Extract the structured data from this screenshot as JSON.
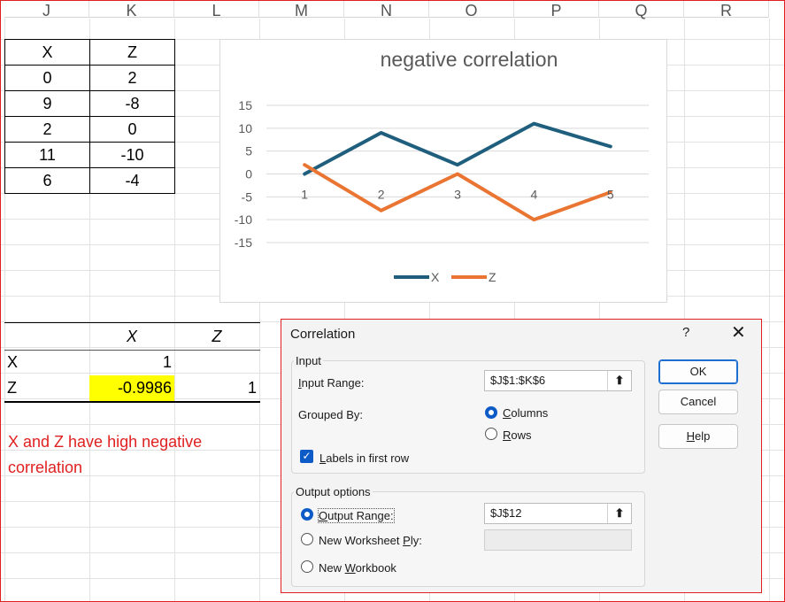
{
  "columns": [
    "J",
    "K",
    "L",
    "M",
    "N",
    "O",
    "P",
    "Q",
    "R"
  ],
  "data_table": {
    "header": [
      "X",
      "Z"
    ],
    "rows": [
      [
        "0",
        "2"
      ],
      [
        "9",
        "-8"
      ],
      [
        "2",
        "0"
      ],
      [
        "11",
        "-10"
      ],
      [
        "6",
        "-4"
      ]
    ]
  },
  "corr_table": {
    "col_headers": [
      "X",
      "Z"
    ],
    "row_x": {
      "label": "X",
      "v1": "1"
    },
    "row_z": {
      "label": "Z",
      "v1": "-0.9986",
      "v2": "1"
    }
  },
  "note": {
    "line1": "X and Z have high negative",
    "line2": "correlation"
  },
  "colors": {
    "x_series": "#1f5f7d",
    "z_series": "#ea7533",
    "highlight": "#ffff00",
    "note_text": "#e02020"
  },
  "chart_data": {
    "type": "line",
    "title": "negative correlation",
    "categories": [
      "1",
      "2",
      "3",
      "4",
      "5"
    ],
    "series": [
      {
        "name": "X",
        "values": [
          0,
          9,
          2,
          11,
          6
        ],
        "color": "#1f5f7d"
      },
      {
        "name": "Z",
        "values": [
          2,
          -8,
          0,
          -10,
          -4
        ],
        "color": "#ea7533"
      }
    ],
    "ylim": [
      -15,
      15
    ],
    "yticks": [
      15,
      10,
      5,
      0,
      -5,
      -10,
      -15
    ],
    "grid": true,
    "legend": "bottom"
  },
  "dialog": {
    "title": "Correlation",
    "help_glyph": "?",
    "close_glyph": "✕",
    "input_group": "Input",
    "input_range_label": "Input Range:",
    "input_range_value": "$J$1:$K$6",
    "grouped_by_label": "Grouped By:",
    "columns_option": "Columns",
    "rows_option": "Rows",
    "labels_checkbox": "Labels in first row",
    "output_group": "Output options",
    "output_range_option": "Output Range:",
    "output_range_value": "$J$12",
    "new_worksheet_option": "New Worksheet Ply:",
    "new_workbook_option": "New Workbook",
    "ok": "OK",
    "cancel": "Cancel",
    "help": "Help",
    "collapse_glyph": "⬆",
    "check_glyph": "✓"
  }
}
